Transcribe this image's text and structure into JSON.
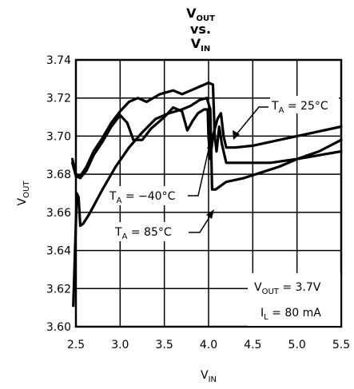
{
  "chart_data": {
    "type": "line",
    "title": {
      "main": "V",
      "sub": "OUT",
      "line2": "vs.",
      "line3_main": "V",
      "line3_sub": "IN"
    },
    "xlabel": {
      "main": "V",
      "sub": "IN"
    },
    "ylabel": {
      "main": "V",
      "sub": "OUT"
    },
    "xlim": [
      2.5,
      5.5
    ],
    "ylim": [
      3.6,
      3.74
    ],
    "x_ticks": [
      "2.5",
      "3.0",
      "3.5",
      "4.0",
      "4.5",
      "5.0",
      "5.5"
    ],
    "y_ticks": [
      "3.60",
      "3.62",
      "3.64",
      "3.66",
      "3.68",
      "3.70",
      "3.72",
      "3.74"
    ],
    "grid": true,
    "annotation_box": {
      "line1_main": "V",
      "line1_sub": "OUT",
      "line1_rest": " = 3.7V",
      "line2_main": "I",
      "line2_sub": "L",
      "line2_rest": " = 80 mA"
    },
    "series": [
      {
        "label_main": "T",
        "label_sub": "A",
        "label_rest": " = 25°C",
        "points": [
          [
            2.46,
            3.686
          ],
          [
            2.5,
            3.679
          ],
          [
            2.55,
            3.678
          ],
          [
            2.62,
            3.682
          ],
          [
            2.7,
            3.69
          ],
          [
            2.8,
            3.697
          ],
          [
            2.9,
            3.705
          ],
          [
            3.0,
            3.711
          ],
          [
            3.08,
            3.707
          ],
          [
            3.15,
            3.698
          ],
          [
            3.25,
            3.698
          ],
          [
            3.35,
            3.704
          ],
          [
            3.5,
            3.71
          ],
          [
            3.6,
            3.715
          ],
          [
            3.7,
            3.713
          ],
          [
            3.76,
            3.703
          ],
          [
            3.82,
            3.708
          ],
          [
            3.88,
            3.712
          ],
          [
            3.95,
            3.714
          ],
          [
            3.99,
            3.714
          ],
          [
            4.0,
            3.699
          ],
          [
            4.02,
            3.688
          ],
          [
            4.05,
            3.7
          ],
          [
            4.1,
            3.709
          ],
          [
            4.14,
            3.712
          ],
          [
            4.17,
            3.7
          ],
          [
            4.2,
            3.694
          ],
          [
            4.3,
            3.694
          ],
          [
            4.5,
            3.695
          ],
          [
            4.8,
            3.698
          ],
          [
            5.0,
            3.7
          ],
          [
            5.2,
            3.702
          ],
          [
            5.5,
            3.705
          ]
        ]
      },
      {
        "label_main": "T",
        "label_sub": "A",
        "label_rest": " = −40°C",
        "points": [
          [
            2.46,
            3.688
          ],
          [
            2.5,
            3.68
          ],
          [
            2.55,
            3.679
          ],
          [
            2.62,
            3.684
          ],
          [
            2.7,
            3.692
          ],
          [
            2.8,
            3.699
          ],
          [
            2.9,
            3.707
          ],
          [
            3.0,
            3.713
          ],
          [
            3.1,
            3.718
          ],
          [
            3.2,
            3.72
          ],
          [
            3.3,
            3.718
          ],
          [
            3.45,
            3.722
          ],
          [
            3.6,
            3.724
          ],
          [
            3.7,
            3.722
          ],
          [
            3.8,
            3.724
          ],
          [
            3.9,
            3.726
          ],
          [
            4.0,
            3.728
          ],
          [
            4.05,
            3.727
          ],
          [
            4.07,
            3.7
          ],
          [
            4.09,
            3.692
          ],
          [
            4.12,
            3.705
          ],
          [
            4.15,
            3.696
          ],
          [
            4.2,
            3.686
          ],
          [
            4.4,
            3.686
          ],
          [
            4.7,
            3.686
          ],
          [
            5.0,
            3.688
          ],
          [
            5.25,
            3.69
          ],
          [
            5.5,
            3.692
          ]
        ]
      },
      {
        "label_main": "T",
        "label_sub": "A",
        "label_rest": " = 85°C",
        "points": [
          [
            2.47,
            3.611
          ],
          [
            2.49,
            3.64
          ],
          [
            2.51,
            3.67
          ],
          [
            2.53,
            3.668
          ],
          [
            2.55,
            3.653
          ],
          [
            2.58,
            3.654
          ],
          [
            2.65,
            3.659
          ],
          [
            2.8,
            3.672
          ],
          [
            2.95,
            3.684
          ],
          [
            3.1,
            3.694
          ],
          [
            3.25,
            3.702
          ],
          [
            3.4,
            3.709
          ],
          [
            3.55,
            3.712
          ],
          [
            3.7,
            3.714
          ],
          [
            3.8,
            3.716
          ],
          [
            3.9,
            3.719
          ],
          [
            3.98,
            3.72
          ],
          [
            4.02,
            3.714
          ],
          [
            4.04,
            3.672
          ],
          [
            4.08,
            3.672
          ],
          [
            4.2,
            3.676
          ],
          [
            4.4,
            3.678
          ],
          [
            4.6,
            3.681
          ],
          [
            4.8,
            3.684
          ],
          [
            5.0,
            3.688
          ],
          [
            5.25,
            3.692
          ],
          [
            5.5,
            3.698
          ]
        ]
      }
    ]
  }
}
